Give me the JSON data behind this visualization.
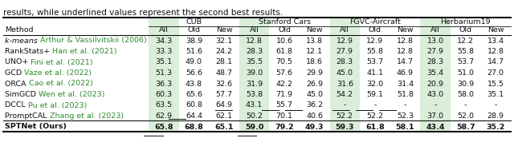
{
  "caption": "results, while underlined values represent the second best results.",
  "datasets": [
    "CUB",
    "Stanford Cars",
    "FGVC-Aircraft",
    "Herbarium19"
  ],
  "col_groups": [
    "All",
    "Old",
    "New",
    "All",
    "Old",
    "New",
    "All",
    "Old",
    "New",
    "All",
    "Old",
    "New"
  ],
  "method_prefix": [
    "k-means ",
    "RankStats+ ",
    "UNO+ ",
    "GCD ",
    "ORCA ",
    "SimGCD ",
    "DCCL ",
    "PromptCAL ",
    "SPTNet (Ours)"
  ],
  "method_suffix": [
    "Arthur & Vassilvitskii (2006)",
    "Han et al. (2021)",
    "Fini et al. (2021)",
    "Vaze et al. (2022)",
    "Cao et al. (2022)",
    "Wen et al. (2023)",
    "Pu et al. (2023)",
    "Zhang et al. (2023)",
    ""
  ],
  "method_italic_prefix": [
    true,
    false,
    false,
    false,
    false,
    false,
    false,
    false,
    false
  ],
  "data": [
    [
      34.3,
      38.9,
      32.1,
      12.8,
      10.6,
      13.8,
      12.9,
      12.9,
      12.8,
      13.0,
      12.2,
      13.4
    ],
    [
      33.3,
      51.6,
      24.2,
      28.3,
      61.8,
      12.1,
      27.9,
      55.8,
      12.8,
      27.9,
      55.8,
      12.8
    ],
    [
      35.1,
      49.0,
      28.1,
      35.5,
      70.5,
      18.6,
      28.3,
      53.7,
      14.7,
      28.3,
      53.7,
      14.7
    ],
    [
      51.3,
      56.6,
      48.7,
      39.0,
      57.6,
      29.9,
      45.0,
      41.1,
      46.9,
      35.4,
      51.0,
      27.0
    ],
    [
      36.3,
      43.8,
      32.6,
      31.9,
      42.2,
      26.9,
      31.6,
      32.0,
      31.4,
      20.9,
      30.9,
      15.5
    ],
    [
      60.3,
      65.6,
      57.7,
      53.8,
      71.9,
      45.0,
      54.2,
      59.1,
      51.8,
      43.0,
      58.0,
      35.1
    ],
    [
      63.5,
      60.8,
      64.9,
      43.1,
      55.7,
      36.2,
      null,
      null,
      null,
      null,
      null,
      null
    ],
    [
      62.9,
      64.4,
      62.1,
      50.2,
      70.1,
      40.6,
      52.2,
      52.2,
      52.3,
      37.0,
      52.0,
      28.9
    ],
    [
      65.8,
      68.8,
      65.1,
      59.0,
      79.2,
      49.3,
      59.3,
      61.8,
      58.1,
      43.4,
      58.7,
      35.2
    ]
  ],
  "underlined": [
    [
      false,
      false,
      false,
      false,
      false,
      false,
      false,
      false,
      false,
      false,
      false,
      false
    ],
    [
      false,
      false,
      false,
      false,
      false,
      false,
      false,
      false,
      false,
      false,
      false,
      false
    ],
    [
      false,
      false,
      false,
      false,
      false,
      false,
      false,
      false,
      false,
      false,
      false,
      false
    ],
    [
      false,
      false,
      false,
      false,
      false,
      false,
      false,
      false,
      false,
      false,
      false,
      false
    ],
    [
      false,
      false,
      false,
      false,
      false,
      false,
      false,
      false,
      false,
      false,
      false,
      false
    ],
    [
      false,
      false,
      false,
      false,
      true,
      false,
      true,
      true,
      false,
      true,
      true,
      true
    ],
    [
      false,
      false,
      true,
      false,
      false,
      false,
      false,
      false,
      false,
      false,
      false,
      false
    ],
    [
      false,
      false,
      false,
      false,
      false,
      false,
      false,
      false,
      false,
      false,
      false,
      false
    ],
    [
      false,
      true,
      false,
      false,
      false,
      true,
      false,
      false,
      false,
      false,
      false,
      false
    ]
  ],
  "bold_row": 8,
  "shade_color": "#daeeda",
  "green_color": "#2e8b2e",
  "black_color": "#111111",
  "bg_color": "#ffffff"
}
